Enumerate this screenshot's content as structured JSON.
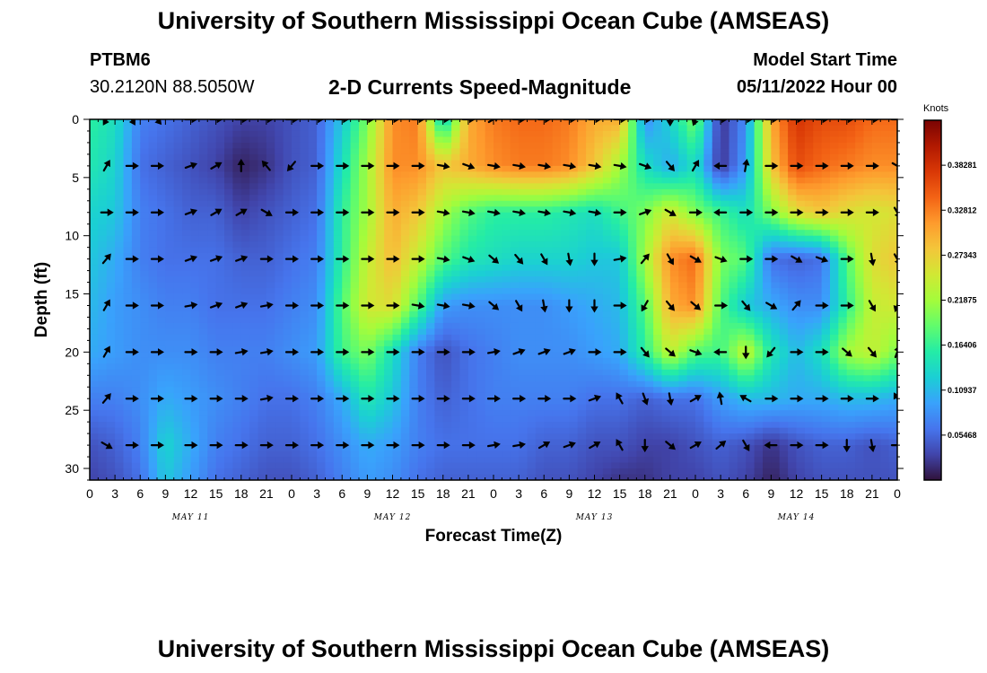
{
  "header": {
    "main_title": "University of Southern Mississippi Ocean Cube (AMSEAS)",
    "station_id": "PTBM6",
    "station_coords": "30.2120N  88.5050W",
    "chart_title": "2-D Currents Speed-Magnitude",
    "model_start_label": "Model Start Time",
    "model_start_value": "05/11/2022 Hour 00"
  },
  "footer": {
    "bottom_title": "University of Southern Mississippi Ocean Cube (AMSEAS)"
  },
  "colors": {
    "colormap": [
      "#30123b",
      "#4145ab",
      "#4675ed",
      "#39a2fc",
      "#1bcfd4",
      "#24eca6",
      "#61fc6c",
      "#a4fc3b",
      "#d1e834",
      "#f3c63a",
      "#fe9b2d",
      "#f36315",
      "#d93806",
      "#b11901",
      "#7a0403"
    ],
    "arrow": "#000000",
    "axis": "#000000"
  },
  "chart_data": {
    "type": "heatmap",
    "title": "2-D Currents Speed-Magnitude",
    "xlabel": "Forecast Time(Z)",
    "ylabel": "Depth (ft)",
    "x_tick_labels": [
      "0",
      "3",
      "6",
      "9",
      "12",
      "15",
      "18",
      "21",
      "0",
      "3",
      "6",
      "9",
      "12",
      "15",
      "18",
      "21",
      "0",
      "3",
      "6",
      "9",
      "12",
      "15",
      "18",
      "21",
      "0",
      "3",
      "6",
      "9",
      "12",
      "15",
      "18",
      "21",
      "0"
    ],
    "x_range_hours": [
      0,
      96
    ],
    "day_labels": [
      {
        "label": "MAY 11",
        "hour": 12
      },
      {
        "label": "MAY 12",
        "hour": 36
      },
      {
        "label": "MAY 13",
        "hour": 60
      },
      {
        "label": "MAY 14",
        "hour": 84
      }
    ],
    "y_tick_labels": [
      "0",
      "5",
      "10",
      "15",
      "20",
      "25",
      "30"
    ],
    "y_range_ft": [
      0,
      31
    ],
    "colorbar": {
      "unit": "Knots",
      "min": 0,
      "max": 0.4375,
      "tick_labels": [
        "0.38281",
        "0.32812",
        "0.27343",
        "0.21875",
        "0.16406",
        "0.10937",
        "0.05468"
      ]
    },
    "depths_ft": [
      0,
      4,
      8,
      12,
      16,
      20,
      24,
      28,
      31
    ],
    "hours": [
      0,
      3,
      6,
      9,
      12,
      15,
      18,
      21,
      24,
      27,
      30,
      33,
      36,
      39,
      42,
      45,
      48,
      51,
      54,
      57,
      60,
      63,
      66,
      69,
      72,
      75,
      78,
      81,
      84,
      87,
      90,
      93,
      96
    ],
    "speed_knots": [
      [
        0.16,
        0.14,
        0.07,
        0.06,
        0.05,
        0.04,
        0.03,
        0.03,
        0.04,
        0.05,
        0.12,
        0.2,
        0.32,
        0.33,
        0.12,
        0.3,
        0.33,
        0.34,
        0.34,
        0.33,
        0.3,
        0.3,
        0.08,
        0.13,
        0.2,
        0.02,
        0.08,
        0.3,
        0.38,
        0.36,
        0.36,
        0.34,
        0.34
      ],
      [
        0.15,
        0.13,
        0.06,
        0.05,
        0.04,
        0.03,
        0.01,
        0.02,
        0.04,
        0.05,
        0.14,
        0.22,
        0.32,
        0.32,
        0.28,
        0.3,
        0.32,
        0.33,
        0.33,
        0.32,
        0.28,
        0.22,
        0.14,
        0.1,
        0.14,
        0.02,
        0.09,
        0.28,
        0.36,
        0.34,
        0.33,
        0.32,
        0.32
      ],
      [
        0.13,
        0.12,
        0.07,
        0.06,
        0.05,
        0.05,
        0.03,
        0.04,
        0.05,
        0.06,
        0.16,
        0.22,
        0.3,
        0.28,
        0.22,
        0.18,
        0.16,
        0.16,
        0.16,
        0.15,
        0.14,
        0.17,
        0.2,
        0.25,
        0.2,
        0.17,
        0.14,
        0.2,
        0.26,
        0.28,
        0.26,
        0.25,
        0.26
      ],
      [
        0.12,
        0.1,
        0.07,
        0.06,
        0.06,
        0.06,
        0.05,
        0.05,
        0.06,
        0.07,
        0.16,
        0.24,
        0.29,
        0.24,
        0.18,
        0.15,
        0.14,
        0.13,
        0.13,
        0.13,
        0.12,
        0.12,
        0.22,
        0.32,
        0.34,
        0.2,
        0.18,
        0.06,
        0.05,
        0.06,
        0.18,
        0.26,
        0.28
      ],
      [
        0.11,
        0.09,
        0.08,
        0.07,
        0.07,
        0.06,
        0.06,
        0.06,
        0.07,
        0.08,
        0.18,
        0.25,
        0.26,
        0.18,
        0.09,
        0.08,
        0.08,
        0.08,
        0.08,
        0.09,
        0.1,
        0.11,
        0.18,
        0.3,
        0.32,
        0.18,
        0.12,
        0.1,
        0.08,
        0.08,
        0.16,
        0.24,
        0.25
      ],
      [
        0.1,
        0.09,
        0.08,
        0.08,
        0.08,
        0.07,
        0.07,
        0.07,
        0.08,
        0.09,
        0.17,
        0.2,
        0.14,
        0.07,
        0.04,
        0.06,
        0.07,
        0.08,
        0.08,
        0.08,
        0.09,
        0.1,
        0.16,
        0.24,
        0.18,
        0.17,
        0.24,
        0.15,
        0.11,
        0.14,
        0.22,
        0.24,
        0.2
      ],
      [
        0.07,
        0.07,
        0.08,
        0.1,
        0.09,
        0.08,
        0.07,
        0.06,
        0.06,
        0.07,
        0.1,
        0.15,
        0.12,
        0.07,
        0.05,
        0.06,
        0.07,
        0.07,
        0.07,
        0.07,
        0.06,
        0.06,
        0.05,
        0.06,
        0.06,
        0.09,
        0.11,
        0.11,
        0.1,
        0.1,
        0.11,
        0.11,
        0.1
      ],
      [
        0.04,
        0.05,
        0.07,
        0.13,
        0.1,
        0.07,
        0.06,
        0.05,
        0.05,
        0.06,
        0.08,
        0.1,
        0.09,
        0.07,
        0.06,
        0.06,
        0.06,
        0.06,
        0.05,
        0.05,
        0.04,
        0.04,
        0.03,
        0.03,
        0.04,
        0.05,
        0.04,
        0.02,
        0.04,
        0.05,
        0.05,
        0.04,
        0.05
      ],
      [
        0.03,
        0.04,
        0.06,
        0.12,
        0.09,
        0.06,
        0.05,
        0.04,
        0.04,
        0.05,
        0.07,
        0.09,
        0.08,
        0.06,
        0.05,
        0.05,
        0.05,
        0.05,
        0.04,
        0.04,
        0.03,
        0.02,
        0.02,
        0.03,
        0.03,
        0.04,
        0.03,
        0.01,
        0.03,
        0.04,
        0.04,
        0.04,
        0.04
      ]
    ],
    "vector_depths_ft": [
      0,
      4,
      8,
      12,
      16,
      20,
      24,
      28
    ],
    "vector_hours": [
      2,
      5,
      8,
      12,
      15,
      18,
      21,
      24,
      27,
      30,
      33,
      36,
      39,
      42,
      45,
      48,
      51,
      54,
      57,
      60,
      63,
      66,
      69,
      72,
      75,
      78,
      81,
      84,
      87,
      90,
      93,
      96
    ],
    "vector_direction_deg": [
      [
        210,
        150,
        140,
        90,
        90,
        90,
        90,
        90,
        90,
        90,
        90,
        90,
        90,
        90,
        90,
        60,
        90,
        90,
        90,
        90,
        90,
        90,
        180,
        200,
        90,
        90,
        90,
        90,
        90,
        90,
        90,
        90
      ],
      [
        30,
        90,
        90,
        70,
        60,
        0,
        320,
        220,
        90,
        90,
        90,
        90,
        90,
        100,
        110,
        100,
        100,
        100,
        100,
        100,
        100,
        110,
        140,
        30,
        270,
        10,
        90,
        90,
        90,
        90,
        90,
        120
      ],
      [
        90,
        90,
        90,
        70,
        60,
        60,
        120,
        90,
        90,
        90,
        90,
        90,
        90,
        100,
        100,
        100,
        100,
        100,
        100,
        100,
        90,
        70,
        120,
        90,
        270,
        90,
        90,
        90,
        90,
        90,
        90,
        150
      ],
      [
        40,
        90,
        90,
        70,
        70,
        70,
        90,
        90,
        90,
        90,
        90,
        90,
        90,
        100,
        110,
        130,
        140,
        150,
        170,
        180,
        80,
        40,
        150,
        120,
        110,
        90,
        90,
        120,
        110,
        90,
        170,
        150
      ],
      [
        30,
        90,
        90,
        80,
        70,
        70,
        80,
        90,
        90,
        90,
        90,
        90,
        100,
        100,
        100,
        130,
        150,
        170,
        180,
        180,
        90,
        210,
        140,
        130,
        90,
        140,
        120,
        40,
        90,
        90,
        150,
        200
      ],
      [
        30,
        90,
        90,
        90,
        90,
        80,
        80,
        90,
        90,
        90,
        90,
        90,
        90,
        90,
        90,
        80,
        70,
        70,
        70,
        90,
        90,
        140,
        130,
        110,
        270,
        180,
        220,
        90,
        90,
        130,
        140,
        20
      ],
      [
        40,
        90,
        90,
        90,
        90,
        90,
        80,
        90,
        90,
        90,
        90,
        90,
        90,
        90,
        90,
        90,
        90,
        90,
        90,
        70,
        330,
        160,
        170,
        60,
        350,
        300,
        90,
        90,
        90,
        90,
        90,
        330
      ],
      [
        120,
        90,
        90,
        90,
        90,
        90,
        90,
        90,
        90,
        90,
        90,
        90,
        90,
        90,
        90,
        80,
        80,
        60,
        70,
        60,
        330,
        180,
        130,
        60,
        50,
        150,
        270,
        90,
        90,
        180,
        170,
        90
      ]
    ]
  }
}
